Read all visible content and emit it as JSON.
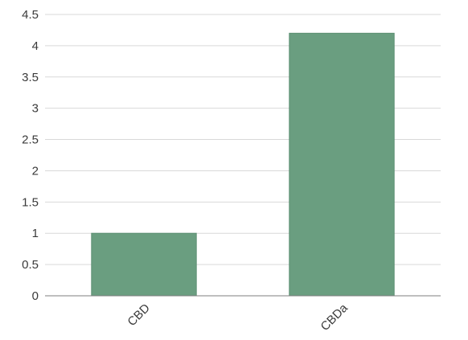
{
  "chart_data": {
    "type": "bar",
    "categories": [
      "CBD",
      "CBDa"
    ],
    "values": [
      1.0,
      4.2
    ],
    "ylim": [
      0,
      4.5
    ],
    "yticks": [
      "0",
      "0.5",
      "1",
      "1.5",
      "2",
      "2.5",
      "3",
      "3.5",
      "4",
      "4.5"
    ],
    "grid": true,
    "legend": "none",
    "colors": {
      "bar": "#6a9e80",
      "grid": "#d9d9d9",
      "axis": "#7f7f7f",
      "text": "#3a3a3a"
    }
  }
}
